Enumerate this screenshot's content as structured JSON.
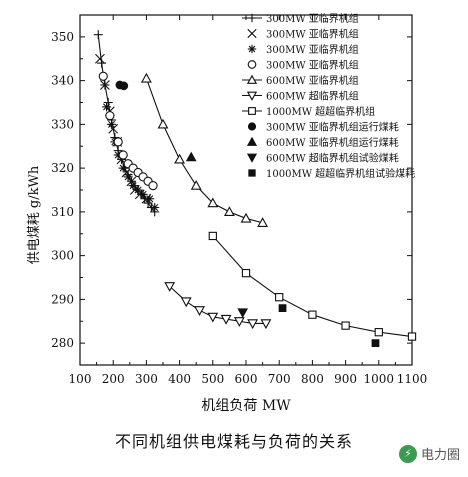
{
  "figure": {
    "caption": "不同机组供电煤耗与负荷的关系",
    "watermark": "电力圈"
  },
  "chart_data": {
    "type": "line",
    "xlabel": "机组负荷 MW",
    "ylabel": "供电煤耗 g/kWh",
    "xlim": [
      100,
      1100
    ],
    "ylim": [
      275,
      355
    ],
    "xticks": [
      100,
      200,
      300,
      400,
      500,
      600,
      700,
      800,
      900,
      1000,
      1100
    ],
    "yticks": [
      280,
      290,
      300,
      310,
      320,
      330,
      340,
      350
    ],
    "grid": false,
    "legend_position": "top-right",
    "series": [
      {
        "name": "300MW 亚临界机组",
        "marker": "plus",
        "line": true,
        "x": [
          155,
          165,
          175,
          185,
          195,
          205,
          215,
          225,
          235,
          245,
          255,
          265,
          275,
          285,
          295,
          305,
          315,
          325
        ],
        "y": [
          350.5,
          344,
          339,
          335,
          331,
          327,
          324,
          322,
          320,
          318.5,
          317,
          316,
          315,
          314,
          313,
          312,
          311,
          310
        ]
      },
      {
        "name": "300MW 亚临界机组",
        "marker": "x",
        "line": false,
        "x": [
          160,
          175,
          190,
          200,
          212,
          225,
          240,
          255,
          265,
          280,
          300
        ],
        "y": [
          345,
          339,
          333,
          329,
          326,
          322,
          319,
          317,
          315,
          314,
          313
        ]
      },
      {
        "name": "300MW 亚临界机组",
        "marker": "star",
        "line": false,
        "x": [
          180,
          195,
          205,
          215,
          230,
          245,
          260,
          275,
          290,
          310,
          325
        ],
        "y": [
          334,
          330,
          326,
          323,
          320,
          318,
          316,
          315,
          314,
          313,
          311
        ]
      },
      {
        "name": "300MW 亚临界机组",
        "marker": "circle-open",
        "line": false,
        "x": [
          170,
          190,
          215,
          230,
          245,
          260,
          275,
          290,
          305,
          320
        ],
        "y": [
          341,
          332,
          326,
          323,
          321,
          320,
          319,
          318,
          317,
          316
        ]
      },
      {
        "name": "600MW 亚临界机组",
        "marker": "triangle-up-open",
        "line": true,
        "x": [
          300,
          350,
          400,
          450,
          500,
          550,
          600,
          650
        ],
        "y": [
          340.5,
          330,
          322,
          316,
          312,
          310,
          308.5,
          307.5
        ]
      },
      {
        "name": "600MW 超临界机组",
        "marker": "triangle-down-open",
        "line": true,
        "x": [
          370,
          420,
          460,
          500,
          540,
          580,
          620,
          660
        ],
        "y": [
          293,
          289.5,
          287.5,
          286,
          285.5,
          285,
          284.5,
          284.5
        ]
      },
      {
        "name": "1000MW 超超临界机组",
        "marker": "square-open",
        "line": true,
        "x": [
          500,
          600,
          700,
          800,
          900,
          1000,
          1100
        ],
        "y": [
          304.5,
          296,
          290.5,
          286.5,
          284,
          282.5,
          281.5
        ]
      },
      {
        "name": "300MW 亚临界机组运行煤耗",
        "marker": "circle-filled",
        "line": false,
        "x": [
          220,
          232
        ],
        "y": [
          339,
          338.8
        ]
      },
      {
        "name": "600MW 亚临界机组运行煤耗",
        "marker": "triangle-up-filled",
        "line": false,
        "x": [
          435
        ],
        "y": [
          322.5
        ]
      },
      {
        "name": "600MW 超临界机组试验煤耗",
        "marker": "triangle-down-filled",
        "line": false,
        "x": [
          590
        ],
        "y": [
          287
        ]
      },
      {
        "name": "1000MW 超超临界机组试验煤耗",
        "marker": "square-filled",
        "line": false,
        "x": [
          710,
          990
        ],
        "y": [
          288,
          280
        ]
      }
    ]
  }
}
